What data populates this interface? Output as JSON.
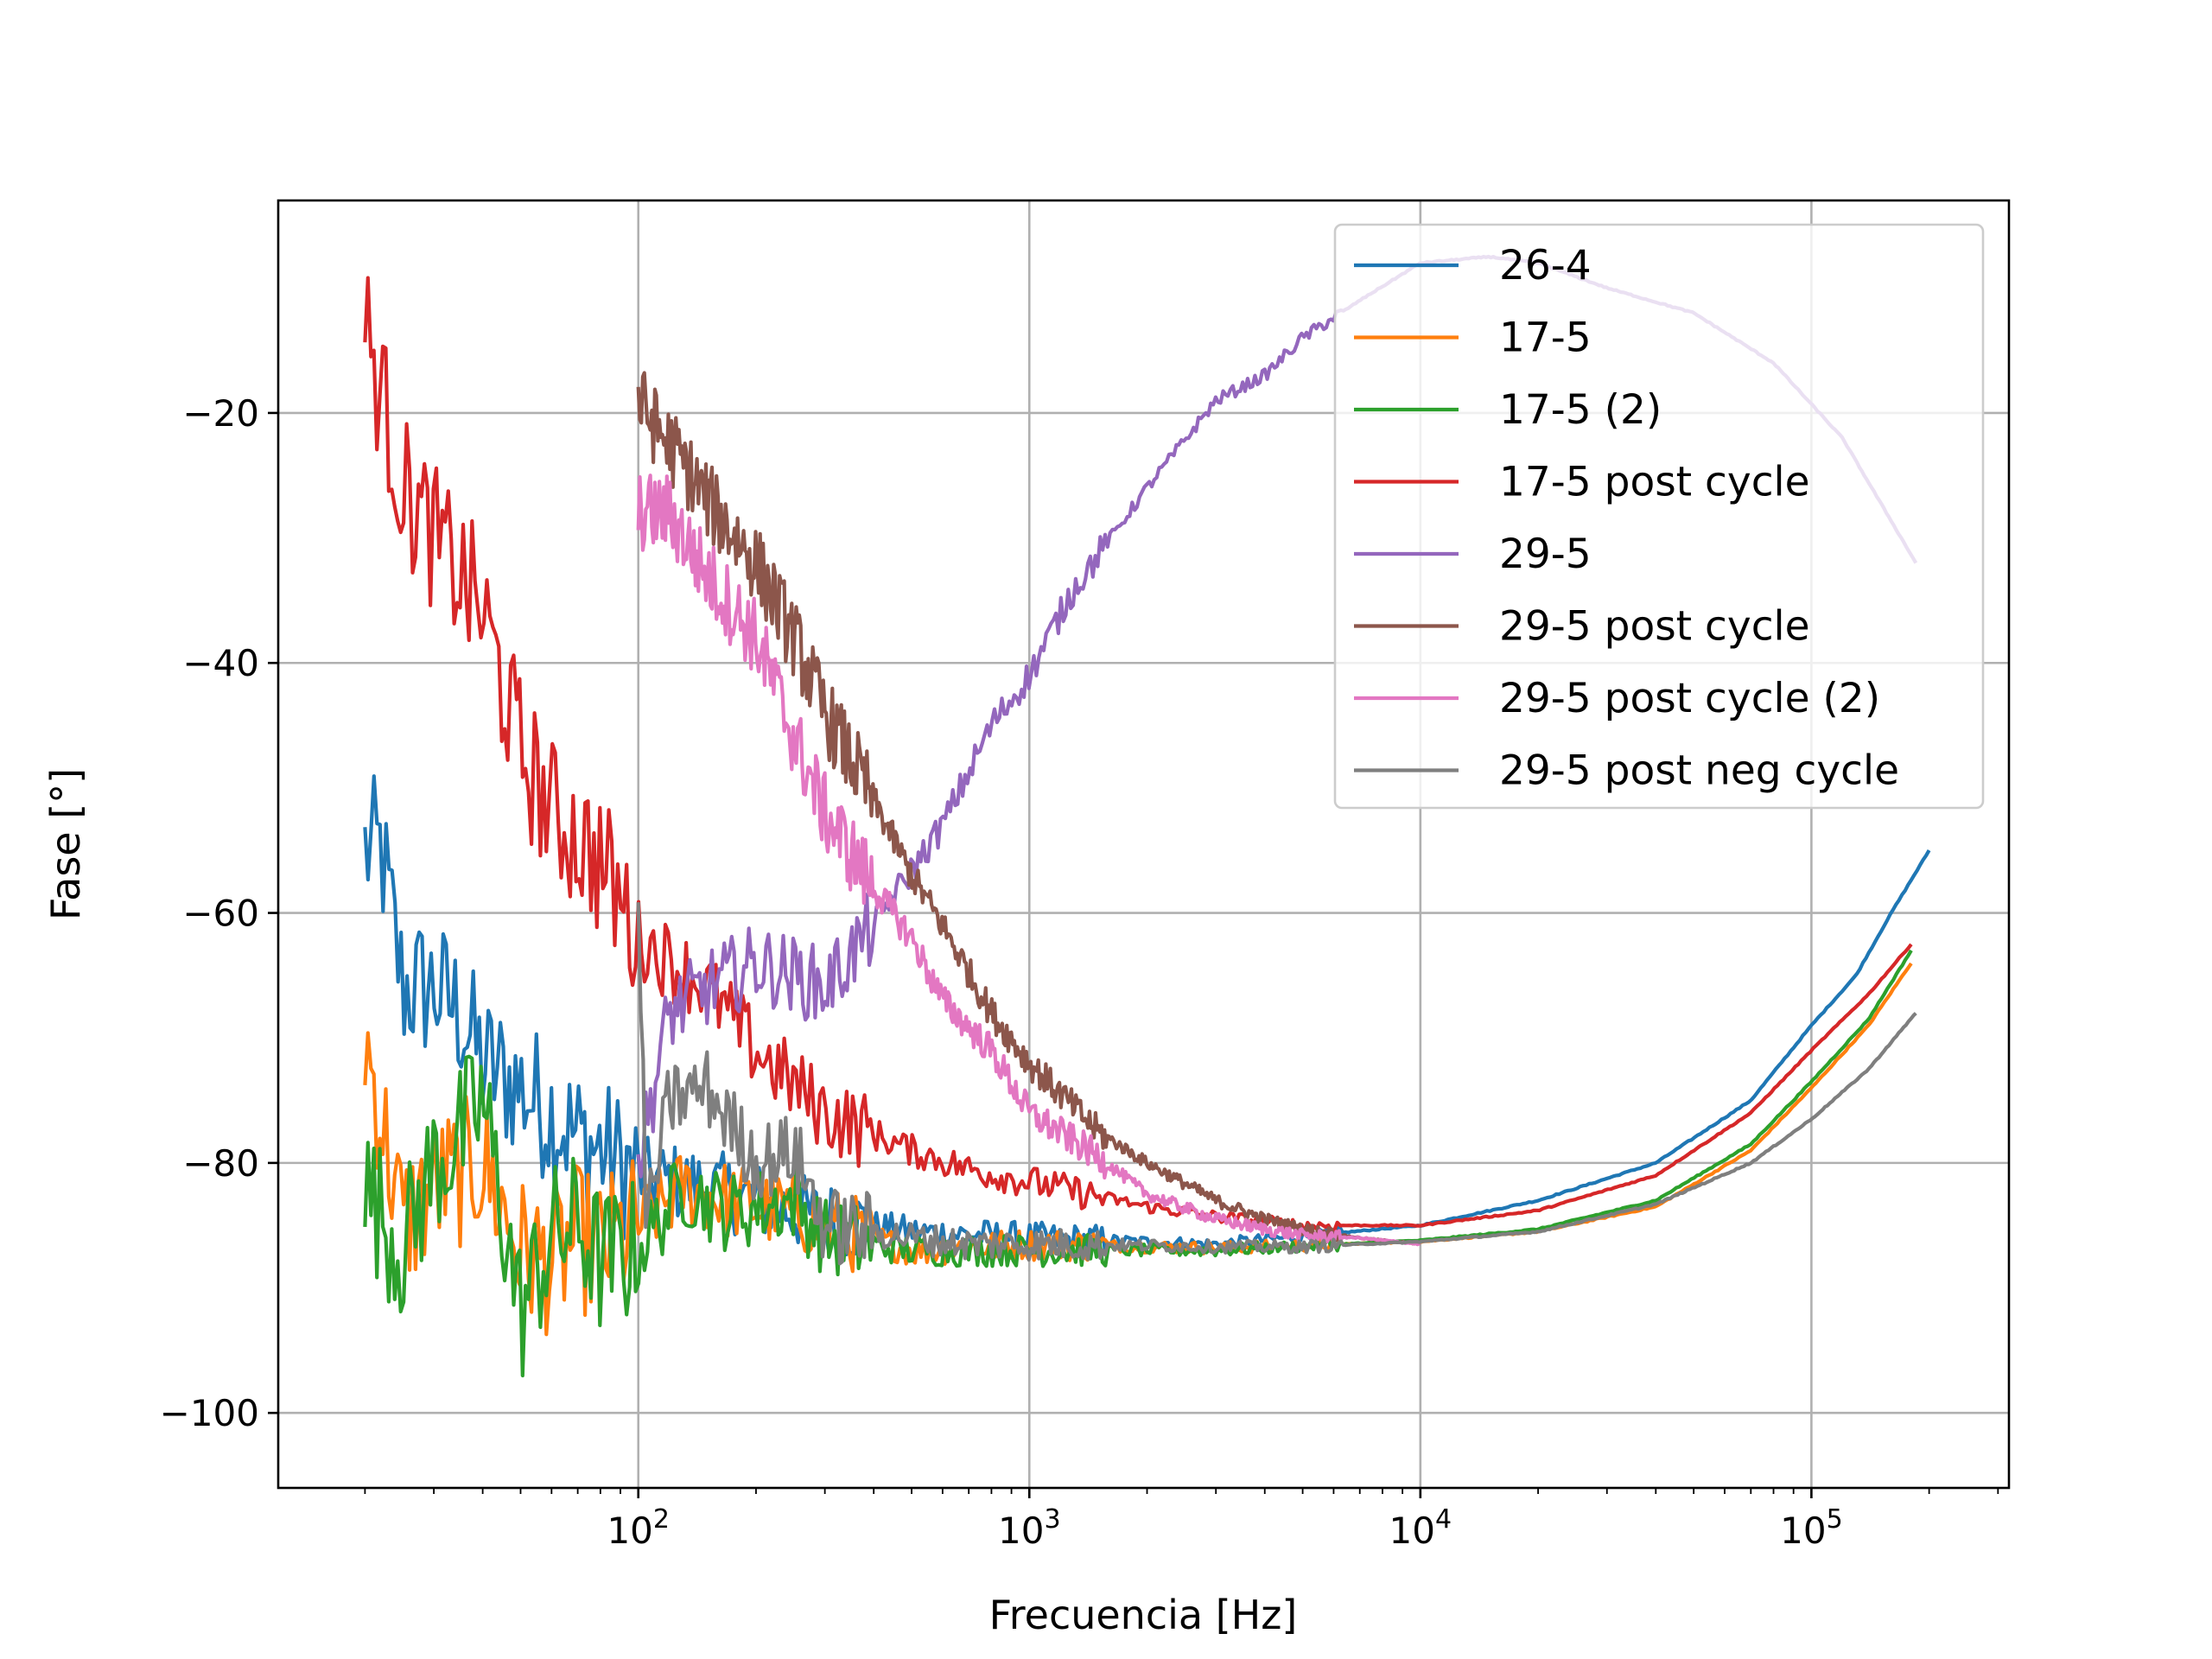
{
  "chart_data": {
    "type": "line",
    "xlabel": "Frecuencia [Hz]",
    "ylabel": "Fase [°]",
    "xscale": "log",
    "xlim": [
      12,
      320000
    ],
    "ylim": [
      -106,
      -3
    ],
    "grid": true,
    "legend_position": "top-right",
    "x_ticks": [
      {
        "value": 100,
        "mantissa": "10",
        "exponent": "2"
      },
      {
        "value": 1000,
        "mantissa": "10",
        "exponent": "3"
      },
      {
        "value": 10000,
        "mantissa": "10",
        "exponent": "4"
      },
      {
        "value": 100000,
        "mantissa": "10",
        "exponent": "5"
      }
    ],
    "y_ticks": [
      {
        "value": -20,
        "label": "−20"
      },
      {
        "value": -40,
        "label": "−40"
      },
      {
        "value": -60,
        "label": "−60"
      },
      {
        "value": -80,
        "label": "−80"
      },
      {
        "value": -100,
        "label": "−100"
      }
    ],
    "series": [
      {
        "name": "26-4",
        "color": "#1f77b4",
        "x_start": 20,
        "x_end": 200000,
        "x": [
          20,
          22,
          25,
          30,
          35,
          40,
          50,
          60,
          70,
          80,
          100,
          150,
          200,
          300,
          500,
          1000,
          3000,
          10000,
          20000,
          40000,
          70000,
          100000,
          130000,
          160000,
          200000
        ],
        "y": [
          -55,
          -55,
          -66,
          -66,
          -68,
          -72,
          -74,
          -76,
          -78,
          -79,
          -81,
          -82,
          -83,
          -84.5,
          -85.5,
          -86,
          -86.5,
          -85,
          -83,
          -80,
          -75,
          -69,
          -65,
          -60,
          -55
        ]
      },
      {
        "name": "17-5",
        "color": "#ff7f0e",
        "x_start": 20,
        "x_end": 180000,
        "x": [
          20,
          25,
          30,
          40,
          50,
          60,
          70,
          80,
          100,
          130,
          170,
          250,
          300,
          500,
          1000,
          3000,
          10000,
          20000,
          40000,
          70000,
          100000,
          140000,
          180000
        ],
        "y": [
          -70,
          -85,
          -82,
          -80,
          -87,
          -88,
          -86,
          -87,
          -85,
          -82,
          -83,
          -84,
          -85,
          -87,
          -86.5,
          -86.8,
          -86.3,
          -85.5,
          -83.5,
          -79,
          -74,
          -69,
          -64
        ]
      },
      {
        "name": "17-5 (2)",
        "color": "#2ca02c",
        "x_start": 20,
        "x_end": 180000,
        "x": [
          20,
          25,
          30,
          35,
          40,
          50,
          60,
          70,
          80,
          100,
          130,
          170,
          250,
          300,
          500,
          1000,
          3000,
          10000,
          20000,
          40000,
          70000,
          100000,
          140000,
          180000
        ],
        "y": [
          -82,
          -87,
          -80,
          -78,
          -75,
          -92,
          -86,
          -85,
          -88,
          -87,
          -82,
          -84,
          -83,
          -86,
          -87,
          -87,
          -87,
          -86.2,
          -85.3,
          -83,
          -78.5,
          -73.5,
          -68.5,
          -63
        ]
      },
      {
        "name": "17-5 post cycle",
        "color": "#d62728",
        "x_start": 20,
        "x_end": 180000,
        "x": [
          20,
          25,
          30,
          35,
          40,
          50,
          60,
          70,
          80,
          100,
          150,
          200,
          300,
          500,
          700,
          1000,
          2000,
          3000,
          5000,
          10000,
          20000,
          40000,
          70000,
          100000,
          140000,
          180000
        ],
        "y": [
          -13,
          -26,
          -30,
          -33,
          -36,
          -47,
          -52,
          -54,
          -56,
          -62,
          -66,
          -71,
          -76,
          -79,
          -80.5,
          -81.5,
          -83.5,
          -84.3,
          -85,
          -85,
          -83.8,
          -81,
          -76,
          -71,
          -66.5,
          -62.5
        ]
      },
      {
        "name": "29-5",
        "color": "#9467bd",
        "x_start": 100,
        "x_end": 185000,
        "x": [
          100,
          120,
          150,
          200,
          250,
          300,
          400,
          600,
          800,
          1000,
          1300,
          2000,
          3000,
          4000,
          5000,
          7000,
          10000,
          15000,
          20000,
          30000,
          50000,
          80000,
          120000,
          185000
        ],
        "y": [
          -80,
          -68,
          -66,
          -64,
          -65,
          -66,
          -61,
          -53,
          -45,
          -41,
          -34,
          -26,
          -19,
          -17,
          -14,
          -11,
          -8,
          -7.5,
          -8,
          -10,
          -12,
          -16,
          -22,
          -32
        ]
      },
      {
        "name": "29-5 post cycle",
        "color": "#8c564b",
        "x_start": 100,
        "x_end": 10000,
        "x": [
          100,
          110,
          130,
          150,
          200,
          250,
          300,
          400,
          500,
          600,
          800,
          1000,
          1500,
          2000,
          3000,
          4000,
          5000,
          7000,
          10000
        ],
        "y": [
          -19,
          -21,
          -24,
          -27,
          -32,
          -38,
          -44,
          -51,
          -57,
          -61,
          -68,
          -72,
          -77.5,
          -80,
          -83,
          -84.5,
          -85.3,
          -86,
          -86.5
        ]
      },
      {
        "name": "29-5 post cycle (2)",
        "color": "#e377c2",
        "x_start": 100,
        "x_end": 10000,
        "x": [
          100,
          120,
          150,
          200,
          250,
          300,
          400,
          500,
          600,
          800,
          1000,
          1500,
          2000,
          3000,
          4000,
          5000,
          7000,
          10000
        ],
        "y": [
          -28,
          -28,
          -33,
          -38,
          -46,
          -52,
          -58,
          -62,
          -67,
          -71,
          -76,
          -79.5,
          -82.5,
          -84.5,
          -85.3,
          -85.8,
          -86,
          -86.5
        ]
      },
      {
        "name": "29-5 post neg cycle",
        "color": "#7f7f7f",
        "x_start": 100,
        "x_end": 185000,
        "x": [
          100,
          105,
          120,
          150,
          200,
          250,
          300,
          400,
          500,
          700,
          1000,
          2000,
          3000,
          5000,
          10000,
          20000,
          40000,
          70000,
          100000,
          140000,
          185000
        ],
        "y": [
          -60,
          -85,
          -75,
          -74,
          -80,
          -79,
          -85,
          -85.5,
          -86,
          -86.5,
          -86.5,
          -86.6,
          -86.7,
          -86.7,
          -86.3,
          -85.5,
          -83.3,
          -80,
          -76.5,
          -72.5,
          -68
        ]
      }
    ]
  }
}
